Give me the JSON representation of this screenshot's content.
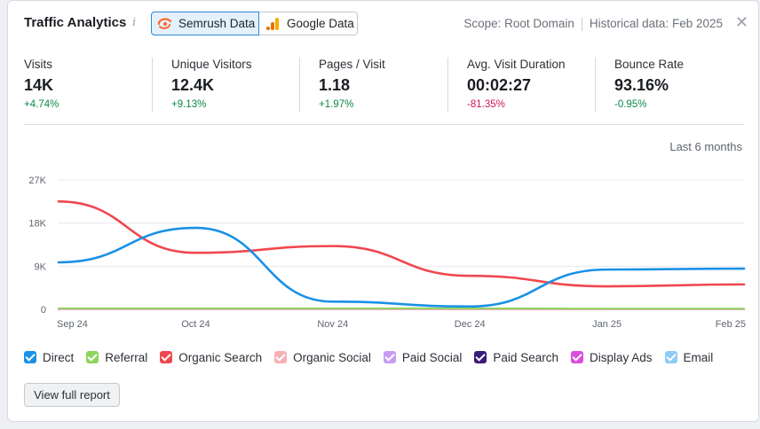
{
  "header": {
    "title": "Traffic Analytics",
    "info_icon": "info-icon",
    "tabs": [
      {
        "label": "Semrush Data",
        "active": true,
        "icon": "semrush-logo-icon"
      },
      {
        "label": "Google Data",
        "active": false,
        "icon": "google-analytics-icon"
      }
    ],
    "scope": "Scope: Root Domain",
    "historical": "Historical data: Feb 2025",
    "close_icon": "close-icon"
  },
  "metrics": [
    {
      "label": "Visits",
      "value": "14K",
      "change": "+4.74%",
      "trend": "pos"
    },
    {
      "label": "Unique Visitors",
      "value": "12.4K",
      "change": "+9.13%",
      "trend": "pos"
    },
    {
      "label": "Pages / Visit",
      "value": "1.18",
      "change": "+1.97%",
      "trend": "pos"
    },
    {
      "label": "Avg. Visit Duration",
      "value": "00:02:27",
      "change": "-81.35%",
      "trend": "neg"
    },
    {
      "label": "Bounce Rate",
      "value": "93.16%",
      "change": "-0.95%",
      "trend": "neg"
    }
  ],
  "range_label": "Last 6 months",
  "colors": {
    "direct": "#1a91e6",
    "referral": "#8dd45c",
    "organic_search": "#f0474f",
    "organic_social": "#f7b1b5",
    "paid_social": "#c89cf2",
    "paid_search": "#3b1c78",
    "display_ads": "#d94ee0",
    "email": "#8ecbf5"
  },
  "chart_data": {
    "type": "line",
    "categories": [
      "Sep 24",
      "Oct 24",
      "Nov 24",
      "Dec 24",
      "Jan 25",
      "Feb 25"
    ],
    "y_ticks": [
      "27K",
      "18K",
      "9K",
      "0"
    ],
    "ylim": [
      0,
      27000
    ],
    "series": [
      {
        "name": "Direct",
        "values": [
          9800,
          17000,
          1600,
          600,
          8300,
          8500
        ]
      },
      {
        "name": "Referral",
        "values": [
          200,
          200,
          200,
          200,
          150,
          150
        ]
      },
      {
        "name": "Organic Search",
        "values": [
          22500,
          11800,
          13200,
          7000,
          4800,
          5200
        ]
      },
      {
        "name": "Organic Social",
        "values": [
          50,
          50,
          50,
          50,
          50,
          50
        ]
      },
      {
        "name": "Paid Social",
        "values": [
          0,
          0,
          0,
          0,
          0,
          0
        ]
      },
      {
        "name": "Paid Search",
        "values": [
          0,
          0,
          0,
          0,
          0,
          0
        ]
      },
      {
        "name": "Display Ads",
        "values": [
          0,
          0,
          0,
          0,
          0,
          0
        ]
      },
      {
        "name": "Email",
        "values": [
          0,
          0,
          0,
          0,
          0,
          0
        ]
      }
    ],
    "legend_position": "bottom"
  },
  "legend": [
    {
      "label": "Direct",
      "color": "#1a91e6"
    },
    {
      "label": "Referral",
      "color": "#8dd45c"
    },
    {
      "label": "Organic Search",
      "color": "#f0474f"
    },
    {
      "label": "Organic Social",
      "color": "#f7b1b5"
    },
    {
      "label": "Paid Social",
      "color": "#c89cf2"
    },
    {
      "label": "Paid Search",
      "color": "#3b1c78"
    },
    {
      "label": "Display Ads",
      "color": "#d94ee0"
    },
    {
      "label": "Email",
      "color": "#8ecbf5"
    }
  ],
  "view_button": "View full report"
}
